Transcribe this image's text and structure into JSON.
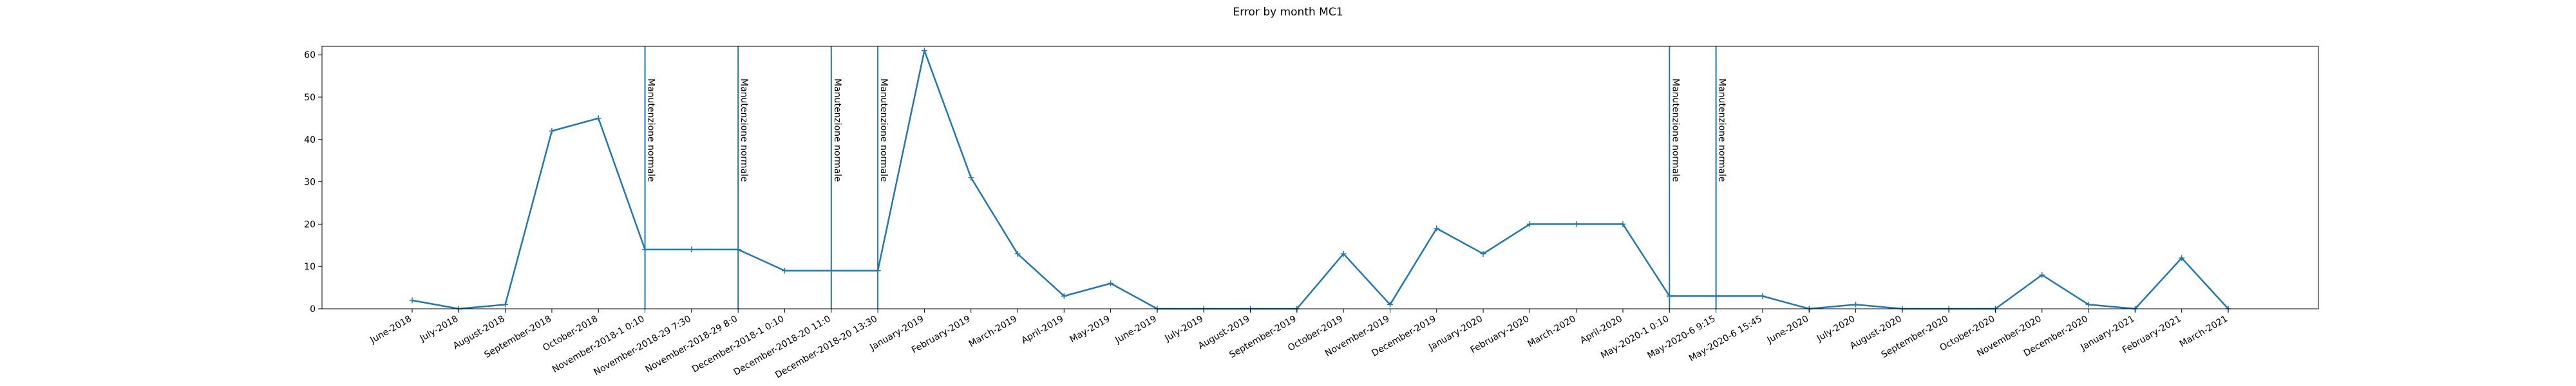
{
  "chart_data": {
    "type": "line",
    "title": "Error by month MC1",
    "xlabel": "",
    "ylabel": "",
    "ylim": [
      0,
      62
    ],
    "yticks": [
      0,
      10,
      20,
      30,
      40,
      50,
      60
    ],
    "grid": false,
    "legend": "none",
    "colors": {
      "series": "#1f77b4",
      "axes": "#000000",
      "background": "#ffffff"
    },
    "categories": [
      "June-2018",
      "July-2018",
      "August-2018",
      "September-2018",
      "October-2018",
      "November-2018-1 0:10",
      "November-2018-29 7:30",
      "November-2018-29 8:0",
      "December-2018-1 0:10",
      "December-2018-20 11:0",
      "December-2018-20 13:30",
      "January-2019",
      "February-2019",
      "March-2019",
      "April-2019",
      "May-2019",
      "June-2019",
      "July-2019",
      "August-2019",
      "September-2019",
      "October-2019",
      "November-2019",
      "December-2019",
      "January-2020",
      "February-2020",
      "March-2020",
      "April-2020",
      "May-2020-1 0:10",
      "May-2020-6 9:15",
      "May-2020-6 15:45",
      "June-2020",
      "July-2020",
      "August-2020",
      "September-2020",
      "October-2020",
      "November-2020",
      "December-2020",
      "January-2021",
      "February-2021",
      "March-2021"
    ],
    "series": [
      {
        "values": [
          2,
          0,
          1,
          42,
          45,
          14,
          14,
          14,
          9,
          9,
          9,
          61,
          31,
          13,
          3,
          6,
          0,
          0,
          0,
          0,
          13,
          1,
          19,
          13,
          20,
          20,
          20,
          3,
          3,
          3,
          0,
          1,
          0,
          0,
          0,
          8,
          1,
          0,
          12,
          0
        ]
      }
    ],
    "vertical_lines": [
      {
        "category": "November-2018-1 0:10",
        "label": "Manutenzione normale"
      },
      {
        "category": "November-2018-29 8:0",
        "label": "Manutenzione normale"
      },
      {
        "category": "December-2018-20 11:0",
        "label": "Manutenzione normale"
      },
      {
        "category": "December-2018-20 13:30",
        "label": "Manutenzione normale"
      },
      {
        "category": "May-2020-1 0:10",
        "label": "Manutenzione normale"
      },
      {
        "category": "May-2020-6 9:15",
        "label": "Manutenzione normale"
      }
    ]
  }
}
